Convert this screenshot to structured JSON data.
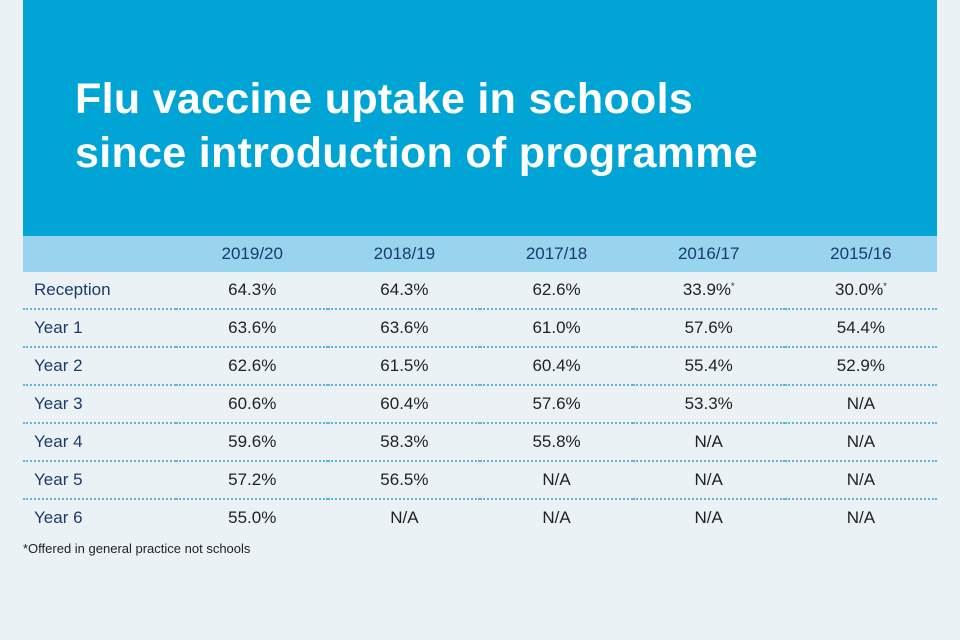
{
  "chart_data": {
    "type": "table",
    "title": "Flu vaccine uptake in schools since introduction of programme",
    "title_lines": [
      "Flu vaccine uptake in schools",
      "since introduction of programme"
    ],
    "columns": [
      "2019/20",
      "2018/19",
      "2017/18",
      "2016/17",
      "2015/16"
    ],
    "rows": [
      {
        "label": "Reception",
        "values": [
          "64.3%",
          "64.3%",
          "62.6%",
          "33.9%",
          "30.0%"
        ],
        "marks": [
          "",
          "",
          "",
          "*",
          "*"
        ]
      },
      {
        "label": "Year 1",
        "values": [
          "63.6%",
          "63.6%",
          "61.0%",
          "57.6%",
          "54.4%"
        ],
        "marks": [
          "",
          "",
          "",
          "",
          ""
        ]
      },
      {
        "label": "Year 2",
        "values": [
          "62.6%",
          "61.5%",
          "60.4%",
          "55.4%",
          "52.9%"
        ],
        "marks": [
          "",
          "",
          "",
          "",
          ""
        ]
      },
      {
        "label": "Year 3",
        "values": [
          "60.6%",
          "60.4%",
          "57.6%",
          "53.3%",
          "N/A"
        ],
        "marks": [
          "",
          "",
          "",
          "",
          ""
        ]
      },
      {
        "label": "Year 4",
        "values": [
          "59.6%",
          "58.3%",
          "55.8%",
          "N/A",
          "N/A"
        ],
        "marks": [
          "",
          "",
          "",
          "",
          ""
        ]
      },
      {
        "label": "Year 5",
        "values": [
          "57.2%",
          "56.5%",
          "N/A",
          "N/A",
          "N/A"
        ],
        "marks": [
          "",
          "",
          "",
          "",
          ""
        ]
      },
      {
        "label": "Year 6",
        "values": [
          "55.0%",
          "N/A",
          "N/A",
          "N/A",
          "N/A"
        ],
        "marks": [
          "",
          "",
          "",
          "",
          ""
        ]
      }
    ],
    "footnote": "*Offered in general practice not schools"
  },
  "colors": {
    "banner": "#00a5d5",
    "header_row": "#99d4ee",
    "background": "#eaf2f5",
    "label_text": "#1c3a6e",
    "divider": "#5fb6d8"
  }
}
